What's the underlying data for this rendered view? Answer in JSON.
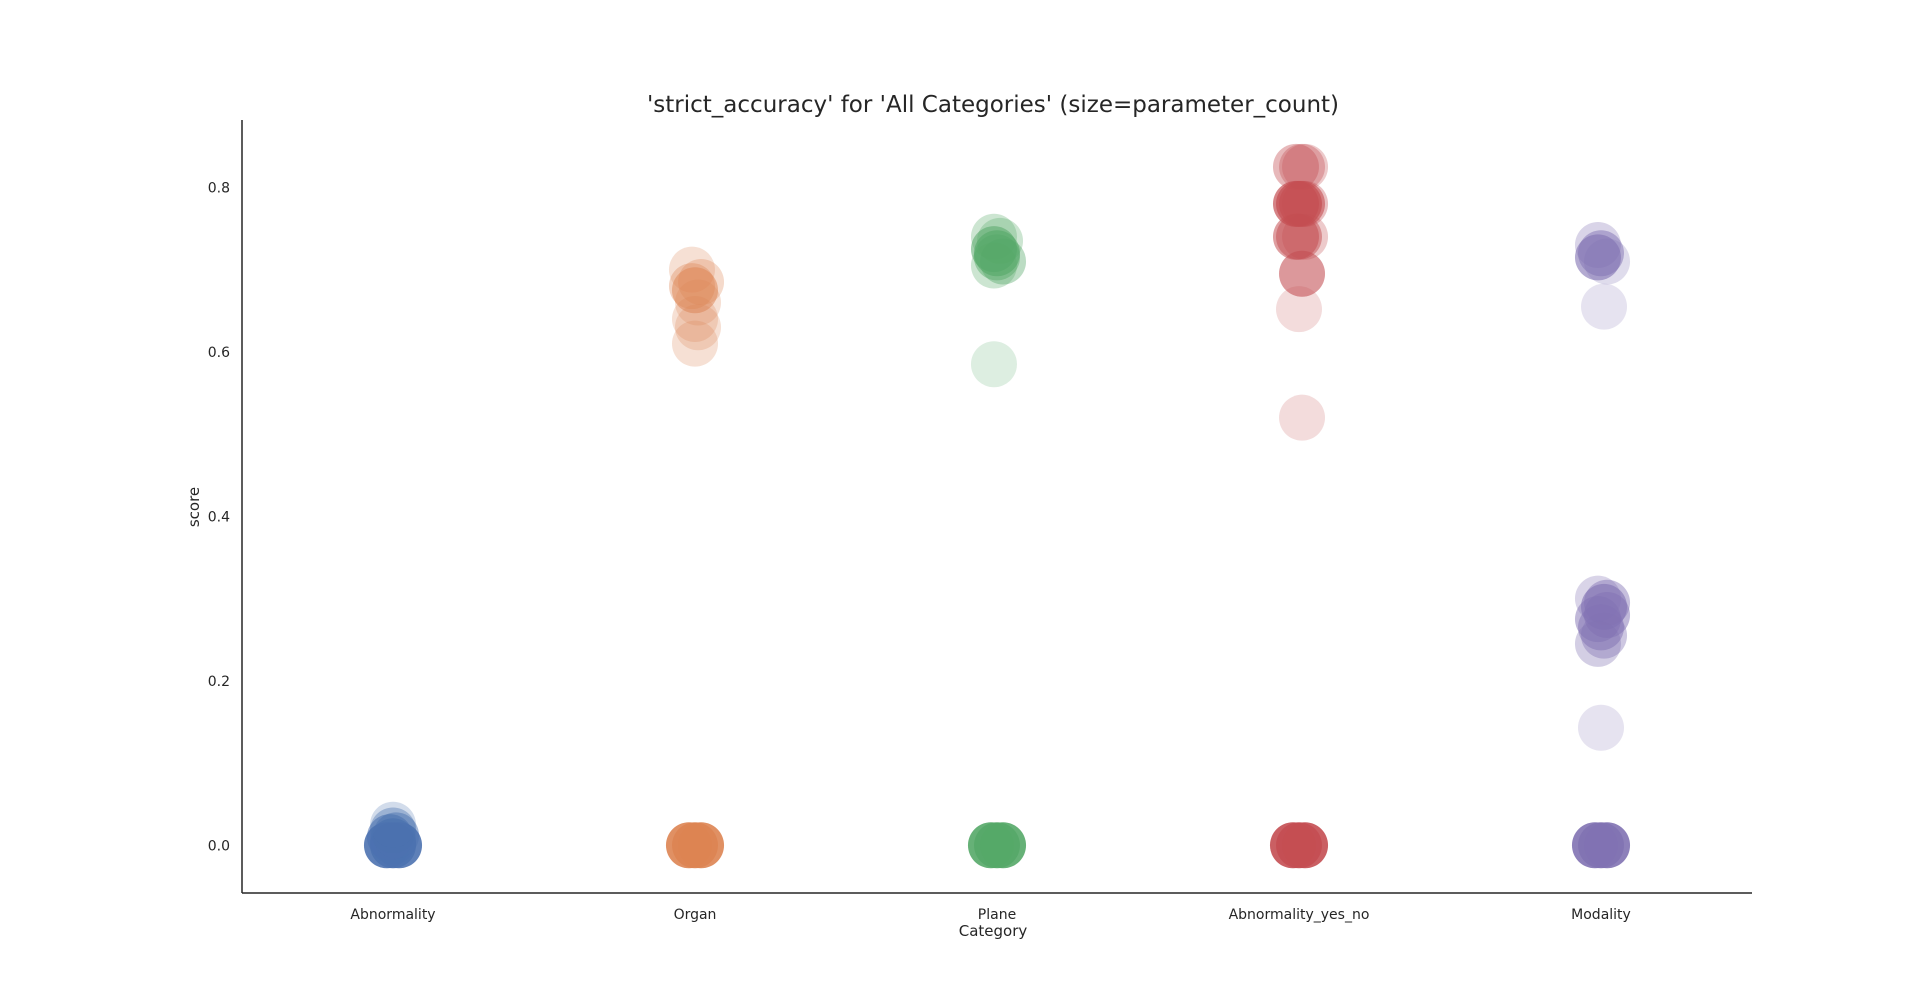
{
  "chart_data": {
    "type": "scatter",
    "title": "'strict_accuracy' for 'All Categories' (size=parameter_count)",
    "xlabel": "Category",
    "ylabel": "score",
    "ylim": [
      -0.058,
      0.882
    ],
    "yticks": [
      0.0,
      0.2,
      0.4,
      0.6,
      0.8
    ],
    "ytick_labels": [
      "0.0",
      "0.2",
      "0.4",
      "0.6",
      "0.8"
    ],
    "categories": [
      "Abnormality",
      "Organ",
      "Plane",
      "Abnormality_yes_no",
      "Modality"
    ],
    "grid": false,
    "legend": "none",
    "series": [
      {
        "color": "#4c72b0",
        "points": [
          {
            "jitter": 0.0,
            "y": 0.0,
            "alpha": 0.9
          },
          {
            "jitter": -0.02,
            "y": 0.0,
            "alpha": 0.9
          },
          {
            "jitter": 0.02,
            "y": 0.0,
            "alpha": 0.9
          },
          {
            "jitter": 0.0,
            "y": 0.005,
            "alpha": 0.7
          },
          {
            "jitter": -0.01,
            "y": 0.01,
            "alpha": 0.6
          },
          {
            "jitter": 0.01,
            "y": 0.012,
            "alpha": 0.5
          },
          {
            "jitter": 0.0,
            "y": 0.018,
            "alpha": 0.4
          },
          {
            "jitter": 0.0,
            "y": 0.025,
            "alpha": 0.25
          }
        ]
      },
      {
        "color": "#dd8452",
        "points": [
          {
            "jitter": 0.0,
            "y": 0.0,
            "alpha": 0.9
          },
          {
            "jitter": -0.02,
            "y": 0.0,
            "alpha": 0.9
          },
          {
            "jitter": 0.02,
            "y": 0.0,
            "alpha": 0.9
          },
          {
            "jitter": -0.01,
            "y": 0.7,
            "alpha": 0.25
          },
          {
            "jitter": 0.02,
            "y": 0.685,
            "alpha": 0.3
          },
          {
            "jitter": -0.01,
            "y": 0.68,
            "alpha": 0.35
          },
          {
            "jitter": 0.0,
            "y": 0.675,
            "alpha": 0.5
          },
          {
            "jitter": 0.01,
            "y": 0.66,
            "alpha": 0.25
          },
          {
            "jitter": 0.0,
            "y": 0.64,
            "alpha": 0.25
          },
          {
            "jitter": 0.01,
            "y": 0.63,
            "alpha": 0.25
          },
          {
            "jitter": 0.0,
            "y": 0.61,
            "alpha": 0.25
          }
        ]
      },
      {
        "color": "#55a868",
        "points": [
          {
            "jitter": 0.0,
            "y": 0.0,
            "alpha": 0.9
          },
          {
            "jitter": -0.02,
            "y": 0.0,
            "alpha": 0.9
          },
          {
            "jitter": 0.02,
            "y": 0.0,
            "alpha": 0.9
          },
          {
            "jitter": -0.01,
            "y": 0.74,
            "alpha": 0.3
          },
          {
            "jitter": 0.01,
            "y": 0.735,
            "alpha": 0.3
          },
          {
            "jitter": -0.01,
            "y": 0.725,
            "alpha": 0.55
          },
          {
            "jitter": 0.0,
            "y": 0.72,
            "alpha": 0.6
          },
          {
            "jitter": 0.0,
            "y": 0.715,
            "alpha": 0.45
          },
          {
            "jitter": 0.02,
            "y": 0.71,
            "alpha": 0.4
          },
          {
            "jitter": -0.01,
            "y": 0.705,
            "alpha": 0.3
          },
          {
            "jitter": -0.01,
            "y": 0.585,
            "alpha": 0.2
          }
        ]
      },
      {
        "color": "#c44e52",
        "points": [
          {
            "jitter": 0.0,
            "y": 0.0,
            "alpha": 0.9
          },
          {
            "jitter": -0.02,
            "y": 0.0,
            "alpha": 0.9
          },
          {
            "jitter": 0.02,
            "y": 0.0,
            "alpha": 0.9
          },
          {
            "jitter": 0.02,
            "y": 0.825,
            "alpha": 0.3
          },
          {
            "jitter": -0.01,
            "y": 0.825,
            "alpha": 0.4
          },
          {
            "jitter": 0.01,
            "y": 0.825,
            "alpha": 0.35
          },
          {
            "jitter": 0.02,
            "y": 0.78,
            "alpha": 0.35
          },
          {
            "jitter": -0.01,
            "y": 0.78,
            "alpha": 0.7
          },
          {
            "jitter": 0.0,
            "y": 0.78,
            "alpha": 0.7
          },
          {
            "jitter": 0.01,
            "y": 0.78,
            "alpha": 0.6
          },
          {
            "jitter": 0.02,
            "y": 0.74,
            "alpha": 0.3
          },
          {
            "jitter": -0.01,
            "y": 0.74,
            "alpha": 0.55
          },
          {
            "jitter": 0.0,
            "y": 0.74,
            "alpha": 0.5
          },
          {
            "jitter": 0.01,
            "y": 0.695,
            "alpha": 0.4
          },
          {
            "jitter": 0.01,
            "y": 0.695,
            "alpha": 0.3
          },
          {
            "jitter": 0.0,
            "y": 0.652,
            "alpha": 0.2
          },
          {
            "jitter": 0.01,
            "y": 0.52,
            "alpha": 0.2
          }
        ]
      },
      {
        "color": "#8172b3",
        "points": [
          {
            "jitter": 0.0,
            "y": 0.0,
            "alpha": 0.9
          },
          {
            "jitter": -0.02,
            "y": 0.0,
            "alpha": 0.9
          },
          {
            "jitter": 0.02,
            "y": 0.0,
            "alpha": 0.9
          },
          {
            "jitter": -0.01,
            "y": 0.73,
            "alpha": 0.3
          },
          {
            "jitter": 0.0,
            "y": 0.72,
            "alpha": 0.5
          },
          {
            "jitter": -0.01,
            "y": 0.715,
            "alpha": 0.6
          },
          {
            "jitter": 0.02,
            "y": 0.71,
            "alpha": 0.25
          },
          {
            "jitter": 0.01,
            "y": 0.655,
            "alpha": 0.2
          },
          {
            "jitter": -0.01,
            "y": 0.3,
            "alpha": 0.3
          },
          {
            "jitter": 0.02,
            "y": 0.295,
            "alpha": 0.45
          },
          {
            "jitter": 0.01,
            "y": 0.29,
            "alpha": 0.6
          },
          {
            "jitter": 0.02,
            "y": 0.28,
            "alpha": 0.5
          },
          {
            "jitter": -0.01,
            "y": 0.275,
            "alpha": 0.5
          },
          {
            "jitter": 0.0,
            "y": 0.265,
            "alpha": 0.5
          },
          {
            "jitter": 0.01,
            "y": 0.255,
            "alpha": 0.4
          },
          {
            "jitter": -0.01,
            "y": 0.245,
            "alpha": 0.35
          },
          {
            "jitter": 0.0,
            "y": 0.143,
            "alpha": 0.2
          }
        ]
      }
    ]
  }
}
